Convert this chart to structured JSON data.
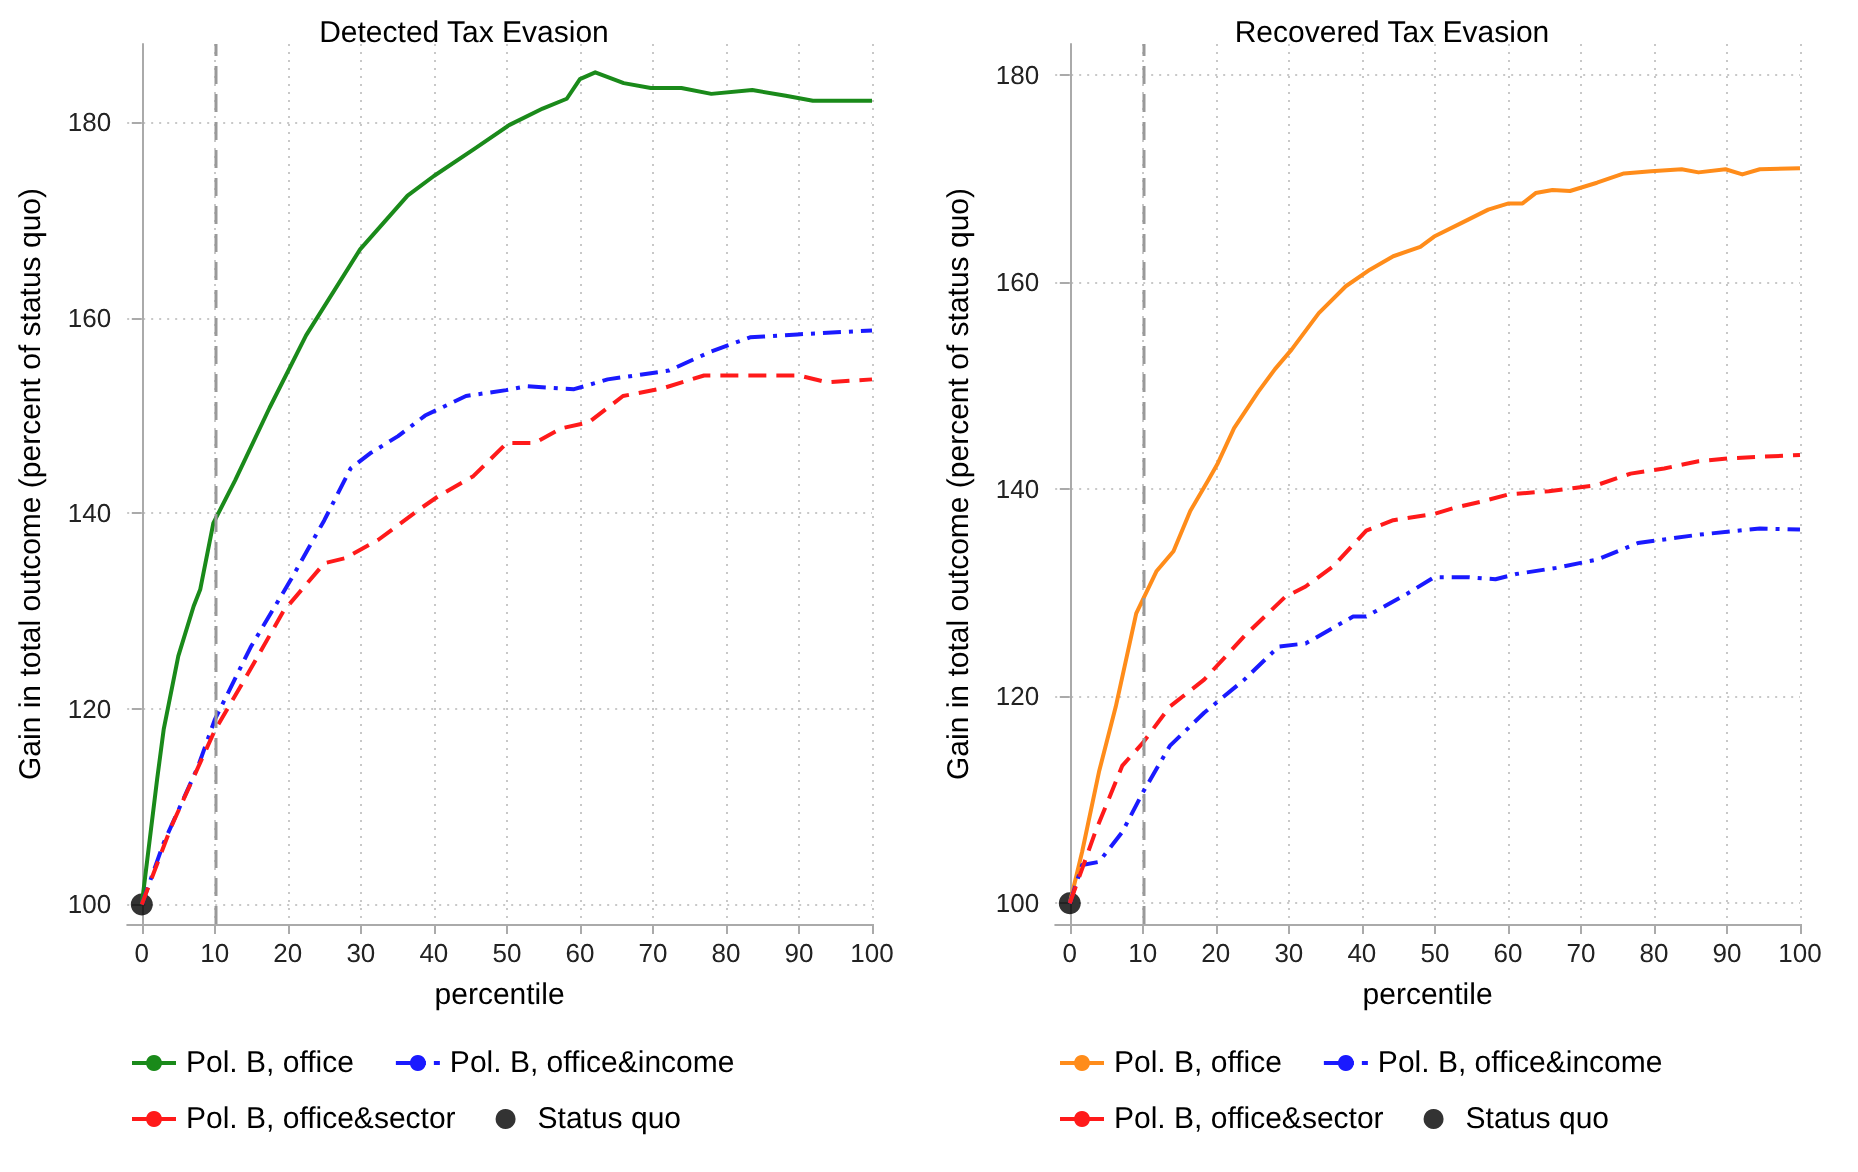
{
  "chart_data": [
    {
      "type": "line",
      "title": "Detected Tax Evasion",
      "xlabel": "percentile",
      "ylabel": "Gain in total outcome (percent of status quo)",
      "xlim": [
        -2,
        100
      ],
      "ylim": [
        98,
        188
      ],
      "xticks": [
        0,
        10,
        20,
        30,
        40,
        50,
        60,
        70,
        80,
        90,
        100
      ],
      "yticks": [
        100,
        120,
        140,
        160,
        180
      ],
      "grid": true,
      "legend": "bottom",
      "marker": "none",
      "ref_lines": [
        {
          "axis": "x",
          "value": 10,
          "color": "#999999",
          "line_style": "dashed"
        }
      ],
      "series": [
        {
          "name": "Pol. B, office",
          "color": "#1a8a1a",
          "line_style": "solid",
          "x": [
            0,
            2.1,
            3,
            5,
            7.1,
            8,
            9.8,
            12.8,
            17.5,
            22.5,
            29.9,
            36.4,
            40,
            45.6,
            50.3,
            54.9,
            58.2,
            60,
            62.1,
            66,
            69.7,
            73.9,
            78,
            83.6,
            88.2,
            91.9,
            100
          ],
          "values": [
            100,
            112.8,
            117.9,
            125.4,
            130.5,
            132.2,
            139,
            143.4,
            150.8,
            158.2,
            167,
            172.5,
            174.5,
            177.3,
            179.7,
            181.4,
            182.4,
            184.4,
            185.1,
            184,
            183.5,
            183.5,
            182.9,
            183.3,
            182.7,
            182.2,
            182.2
          ]
        },
        {
          "name": "Pol. B, office&income",
          "color": "#1a1aff",
          "line_style": "dashdot",
          "x": [
            0,
            3,
            7.7,
            10,
            14.9,
            20.4,
            25,
            28.6,
            31.4,
            35.1,
            38.8,
            44.4,
            49.9,
            52.7,
            59.2,
            63.8,
            68.5,
            72.2,
            77.8,
            83.3,
            89.8,
            100
          ],
          "values": [
            100,
            106.3,
            114.1,
            118.9,
            126.3,
            133.2,
            139.3,
            144.6,
            146.2,
            147.9,
            150,
            152,
            152.6,
            153,
            152.7,
            153.7,
            154.2,
            154.6,
            156.5,
            158,
            158.3,
            158.7
          ]
        },
        {
          "name": "Pol. B, office&sector",
          "color": "#ff1a1a",
          "line_style": "dashed",
          "x": [
            0,
            4,
            10,
            14,
            19.4,
            25,
            27.8,
            32.4,
            38,
            40.7,
            45.4,
            50,
            53.8,
            57.5,
            61.2,
            65.9,
            71.4,
            77,
            82.6,
            90,
            93.8,
            100
          ],
          "values": [
            100,
            107.9,
            117.8,
            122.9,
            130,
            134.9,
            135.4,
            137.3,
            140.4,
            141.8,
            143.8,
            147.2,
            147.2,
            148.7,
            149.3,
            152,
            152.8,
            154.1,
            154.1,
            154.1,
            153.4,
            153.7
          ]
        },
        {
          "name": "Status quo",
          "type": "scatter",
          "marker": "circle",
          "color": "#000000",
          "x": [
            0
          ],
          "values": [
            100
          ]
        }
      ]
    },
    {
      "type": "line",
      "title": "Recovered Tax Evasion",
      "xlabel": "percentile",
      "ylabel": "Gain in total outcome (percent of status quo)",
      "xlim": [
        -2,
        100
      ],
      "ylim": [
        98,
        183
      ],
      "xticks": [
        0,
        10,
        20,
        30,
        40,
        50,
        60,
        70,
        80,
        90,
        100
      ],
      "yticks": [
        100,
        120,
        140,
        160,
        180
      ],
      "grid": true,
      "legend": "bottom",
      "marker": "none",
      "ref_lines": [
        {
          "axis": "x",
          "value": 10,
          "color": "#999999",
          "line_style": "dashed"
        }
      ],
      "series": [
        {
          "name": "Pol. B, office",
          "color": "#ff8c1a",
          "line_style": "solid",
          "x": [
            0,
            1.7,
            4,
            6.3,
            9.1,
            11.9,
            14.2,
            16.5,
            18.9,
            20.2,
            22.5,
            25.8,
            28.1,
            30.4,
            34.1,
            37.8,
            41.1,
            44.3,
            48,
            49.9,
            53.6,
            57.3,
            60.1,
            62,
            63.8,
            66.1,
            68.5,
            72.2,
            75.9,
            79.6,
            83.8,
            86.1,
            89.8,
            92.1,
            94.5,
            100
          ],
          "values": [
            100,
            105,
            112.7,
            119,
            128,
            132.1,
            134,
            137.9,
            140.8,
            142.4,
            145.9,
            149.4,
            151.6,
            153.5,
            157,
            159.6,
            161.2,
            162.5,
            163.4,
            164.4,
            165.7,
            167,
            167.6,
            167.6,
            168.6,
            168.9,
            168.8,
            169.6,
            170.5,
            170.7,
            170.9,
            170.6,
            170.9,
            170.4,
            170.9,
            171
          ]
        },
        {
          "name": "Pol. B, office&income",
          "color": "#1a1aff",
          "line_style": "dashdot",
          "x": [
            0,
            1.7,
            4,
            7.2,
            10,
            13.7,
            18.4,
            23.9,
            28.6,
            32.3,
            38.8,
            40.6,
            46.2,
            49.9,
            54.6,
            58.3,
            61.1,
            66.6,
            72.2,
            77.8,
            86.1,
            94.5,
            100
          ],
          "values": [
            100,
            103.7,
            104,
            106.9,
            110.7,
            115.2,
            118.4,
            121.6,
            124.8,
            125.1,
            127.7,
            127.7,
            129.9,
            131.5,
            131.5,
            131.3,
            131.8,
            132.4,
            133.2,
            134.8,
            135.6,
            136.2,
            136.1
          ]
        },
        {
          "name": "Pol. B, office&sector",
          "color": "#ff1a1a",
          "line_style": "dashed",
          "x": [
            0,
            3.5,
            7.2,
            10,
            13.7,
            18.4,
            23.9,
            29.5,
            32.3,
            36,
            40.6,
            44.3,
            49.9,
            52.7,
            56.4,
            60.1,
            65.6,
            72.2,
            76.8,
            81.4,
            86.1,
            90.7,
            100
          ],
          "values": [
            100,
            106.9,
            113.3,
            115.5,
            119,
            121.6,
            125.8,
            129.6,
            130.6,
            132.5,
            136,
            137,
            137.6,
            138.2,
            138.8,
            139.5,
            139.8,
            140.4,
            141.5,
            142,
            142.7,
            143,
            143.3
          ]
        },
        {
          "name": "Status quo",
          "type": "scatter",
          "marker": "circle",
          "color": "#000000",
          "x": [
            0
          ],
          "values": [
            100
          ]
        }
      ]
    }
  ]
}
